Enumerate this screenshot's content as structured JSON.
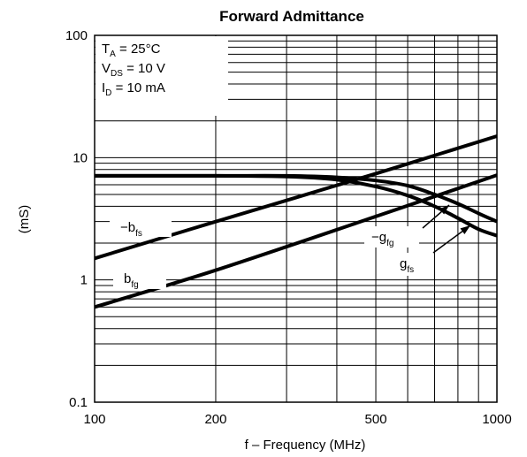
{
  "chart_data": {
    "type": "line",
    "title": "Forward Admittance",
    "xlabel": "f – Frequency (MHz)",
    "ylabel": "(mS)",
    "x_scale": "log",
    "y_scale": "log",
    "xlim": [
      100,
      1000
    ],
    "ylim": [
      0.1,
      100
    ],
    "grid": true,
    "x_ticks": [
      {
        "value": 100,
        "label": "100"
      },
      {
        "value": 200,
        "label": "200"
      },
      {
        "value": 500,
        "label": "500"
      },
      {
        "value": 1000,
        "label": "1000"
      }
    ],
    "y_ticks": [
      {
        "value": 0.1,
        "label": "0.1"
      },
      {
        "value": 1,
        "label": "1"
      },
      {
        "value": 10,
        "label": "10"
      },
      {
        "value": 100,
        "label": "100"
      }
    ],
    "conditions": [
      {
        "main": "T",
        "sub": "A",
        "rest": " = 25°C"
      },
      {
        "main": "V",
        "sub": "DS",
        "rest": " = 10 V"
      },
      {
        "main": "I",
        "sub": "D",
        "rest": " = 10 mA"
      }
    ],
    "series": [
      {
        "name": "−b",
        "sub": "fs",
        "x": [
          100,
          200,
          500,
          1000
        ],
        "y": [
          1.5,
          3.0,
          7.4,
          15.0
        ]
      },
      {
        "name": "b",
        "sub": "fg",
        "x": [
          100,
          200,
          500,
          1000
        ],
        "y": [
          0.6,
          1.2,
          3.3,
          7.2
        ]
      },
      {
        "name": "−g",
        "sub": "fg",
        "x": [
          100,
          200,
          300,
          400,
          500,
          600,
          700,
          800,
          900,
          1000
        ],
        "y": [
          7.1,
          7.1,
          7.1,
          6.9,
          6.5,
          5.9,
          5.0,
          4.2,
          3.5,
          3.0
        ]
      },
      {
        "name": "g",
        "sub": "fs",
        "x": [
          100,
          200,
          300,
          400,
          500,
          600,
          700,
          800,
          900,
          1000
        ],
        "y": [
          7.1,
          7.1,
          7.0,
          6.6,
          5.8,
          4.9,
          4.0,
          3.2,
          2.6,
          2.3
        ]
      }
    ]
  }
}
